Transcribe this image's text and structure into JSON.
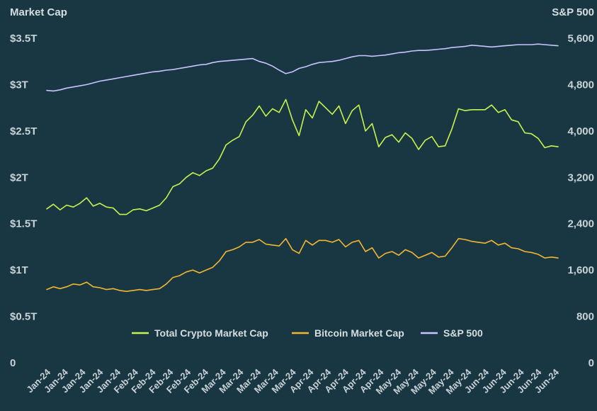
{
  "chart_data": {
    "type": "line",
    "y_left_title": "Market Cap",
    "y_right_title": "S&P 500",
    "y_left_ticks": [
      "0",
      "$0.5T",
      "$1T",
      "$1.5T",
      "$2T",
      "$2.5T",
      "$3T",
      "$3.5T"
    ],
    "y_left_values": [
      0,
      0.5,
      1,
      1.5,
      2,
      2.5,
      3,
      3.5
    ],
    "y_right_ticks": [
      "0",
      "800",
      "1,600",
      "2,400",
      "3,200",
      "4,000",
      "4,800",
      "5,600"
    ],
    "y_right_values": [
      0,
      800,
      1600,
      2400,
      3200,
      4000,
      4800,
      5600
    ],
    "ylim_left": [
      0,
      3.5
    ],
    "ylim_right": [
      0,
      5600
    ],
    "x_tick_labels": [
      "Jan-24",
      "Jan-24",
      "Jan-24",
      "Jan-24",
      "Jan-24",
      "Feb-24",
      "Feb-24",
      "Feb-24",
      "Feb-24",
      "Feb-24",
      "Mar-24",
      "Mar-24",
      "Mar-24",
      "Mar-24",
      "Mar-24",
      "Apr-24",
      "Apr-24",
      "Apr-24",
      "Apr-24",
      "Apr-24",
      "May-24",
      "May-24",
      "May-24",
      "May-24",
      "May-24",
      "Jun-24",
      "Jun-24",
      "Jun-24",
      "Jun-24",
      "Jun-24"
    ],
    "legend_position": "bottom-center",
    "series": [
      {
        "name": "Total Crypto Market Cap",
        "axis": "left",
        "color": "#c6f24e",
        "values": [
          1.66,
          1.71,
          1.65,
          1.7,
          1.68,
          1.72,
          1.78,
          1.69,
          1.72,
          1.68,
          1.67,
          1.6,
          1.6,
          1.65,
          1.66,
          1.64,
          1.67,
          1.7,
          1.78,
          1.9,
          1.93,
          2.0,
          2.05,
          2.02,
          2.07,
          2.1,
          2.2,
          2.35,
          2.4,
          2.44,
          2.6,
          2.67,
          2.77,
          2.66,
          2.74,
          2.7,
          2.84,
          2.62,
          2.45,
          2.73,
          2.64,
          2.82,
          2.75,
          2.68,
          2.77,
          2.58,
          2.72,
          2.78,
          2.5,
          2.58,
          2.33,
          2.43,
          2.46,
          2.38,
          2.48,
          2.42,
          2.3,
          2.4,
          2.44,
          2.33,
          2.34,
          2.52,
          2.74,
          2.72,
          2.73,
          2.73,
          2.73,
          2.78,
          2.7,
          2.73,
          2.62,
          2.6,
          2.48,
          2.47,
          2.42,
          2.32,
          2.34,
          2.33
        ]
      },
      {
        "name": "Bitcoin Market Cap",
        "axis": "left",
        "color": "#f2b630",
        "values": [
          0.79,
          0.82,
          0.8,
          0.82,
          0.85,
          0.84,
          0.87,
          0.82,
          0.81,
          0.79,
          0.8,
          0.78,
          0.77,
          0.78,
          0.79,
          0.78,
          0.79,
          0.8,
          0.85,
          0.92,
          0.94,
          0.98,
          1.0,
          0.97,
          1.0,
          1.03,
          1.1,
          1.2,
          1.22,
          1.25,
          1.3,
          1.3,
          1.33,
          1.28,
          1.27,
          1.26,
          1.34,
          1.22,
          1.18,
          1.32,
          1.27,
          1.32,
          1.32,
          1.3,
          1.33,
          1.25,
          1.3,
          1.32,
          1.2,
          1.24,
          1.13,
          1.18,
          1.2,
          1.16,
          1.22,
          1.19,
          1.13,
          1.16,
          1.19,
          1.14,
          1.15,
          1.24,
          1.34,
          1.33,
          1.31,
          1.3,
          1.29,
          1.32,
          1.27,
          1.29,
          1.24,
          1.23,
          1.2,
          1.19,
          1.17,
          1.13,
          1.14,
          1.13
        ]
      },
      {
        "name": "S&P 500",
        "axis": "right",
        "color": "#c8c4ff",
        "values": [
          4700,
          4690,
          4710,
          4740,
          4760,
          4780,
          4800,
          4830,
          4860,
          4880,
          4900,
          4920,
          4940,
          4960,
          4980,
          5000,
          5020,
          5030,
          5050,
          5060,
          5080,
          5100,
          5120,
          5140,
          5150,
          5180,
          5200,
          5210,
          5220,
          5230,
          5240,
          5250,
          5200,
          5170,
          5120,
          5050,
          4990,
          5020,
          5080,
          5110,
          5150,
          5180,
          5190,
          5200,
          5220,
          5250,
          5280,
          5300,
          5300,
          5290,
          5300,
          5310,
          5330,
          5350,
          5360,
          5380,
          5390,
          5390,
          5400,
          5410,
          5420,
          5440,
          5450,
          5460,
          5480,
          5470,
          5460,
          5450,
          5460,
          5470,
          5480,
          5490,
          5490,
          5490,
          5500,
          5490,
          5480,
          5470
        ]
      }
    ]
  }
}
